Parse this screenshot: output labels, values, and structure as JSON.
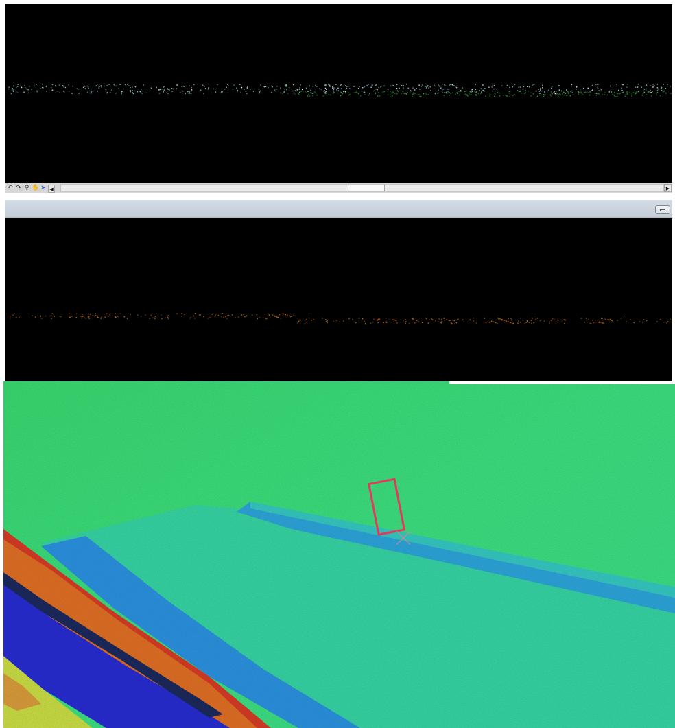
{
  "profile_view": {
    "upper_points_color": "#9adfe6",
    "lower_points_color": "#2fae3a"
  },
  "navigation": {
    "tools": [
      {
        "icon": "undo-icon",
        "glyph": "↶"
      },
      {
        "icon": "redo-icon",
        "glyph": "↷"
      },
      {
        "icon": "zoom-icon",
        "glyph": "⚲"
      },
      {
        "icon": "pan-icon",
        "glyph": "✋"
      },
      {
        "icon": "select-icon",
        "glyph": "➤"
      }
    ],
    "scroll_left_glyph": "◀",
    "scroll_right_glyph": "▶"
  },
  "second_view": {
    "points_color": "#c46a12"
  },
  "terrain_view": {
    "colors": {
      "terrain_green": "#3fe07a",
      "channel_cyan": "#3ad2b0",
      "ridge_red": "#e8331f",
      "trench_blue": "#2a22d6",
      "highland_yellow": "#d9e040"
    },
    "selection_box_color": "#e23a5e"
  }
}
